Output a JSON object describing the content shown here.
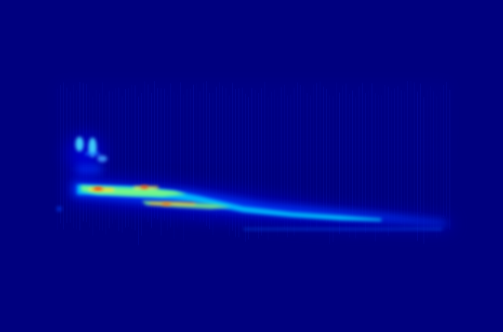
{
  "image": {
    "kind": "spectrogram-heatmap",
    "colormap": "jet",
    "palette": {
      "background": "#00007f",
      "low": "#0000c8",
      "mid_low": "#0050ff",
      "mid": "#00d8ff",
      "mid_high": "#7fff7f",
      "high": "#ffd800",
      "peak": "#ff2000"
    }
  }
}
